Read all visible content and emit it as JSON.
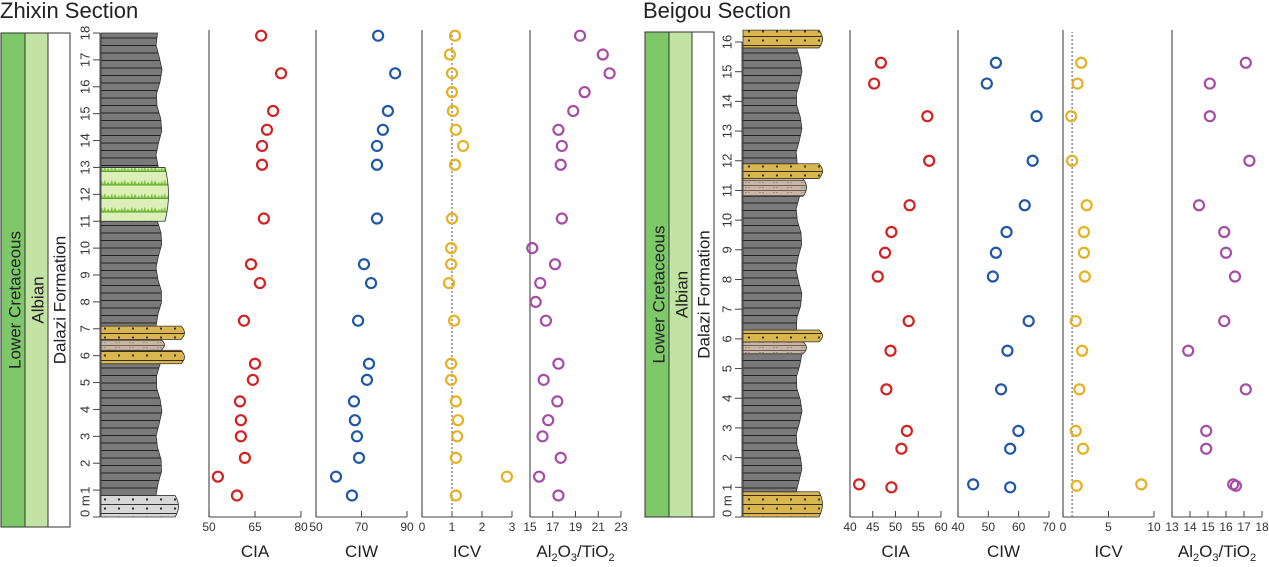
{
  "chart_data": [
    {
      "type": "scatter",
      "title": "Zhixin Section",
      "depth_axis": {
        "label": "m",
        "range": [
          0,
          18
        ],
        "ticks": [
          0,
          1,
          2,
          3,
          4,
          5,
          6,
          7,
          8,
          9,
          10,
          11,
          12,
          13,
          14,
          15,
          16,
          17,
          18
        ]
      },
      "strat_columns": [
        "Lower Cretaceous",
        "Albian",
        "Dalazi Formation"
      ],
      "lithology": [
        {
          "type": "sandstone-light",
          "from": 0,
          "to": 0.8
        },
        {
          "type": "mudstone",
          "from": 0.8,
          "to": 5.7
        },
        {
          "type": "sandstone",
          "from": 5.7,
          "to": 6.2
        },
        {
          "type": "siltstone",
          "from": 6.2,
          "to": 6.6
        },
        {
          "type": "sandstone",
          "from": 6.6,
          "to": 7.1
        },
        {
          "type": "mudstone",
          "from": 7.1,
          "to": 11.0
        },
        {
          "type": "vegetation",
          "from": 11.0,
          "to": 13.0
        },
        {
          "type": "mudstone",
          "from": 13.0,
          "to": 18.0
        }
      ],
      "panels": [
        {
          "name": "CIA",
          "xlabel": "CIA",
          "xlim": [
            50,
            80
          ],
          "ticks": [
            50,
            65,
            80
          ],
          "color": "#d32020",
          "points": [
            [
              0.8,
              59.1
            ],
            [
              1.5,
              52.9
            ],
            [
              2.2,
              61.7
            ],
            [
              3.0,
              60.4
            ],
            [
              3.6,
              60.4
            ],
            [
              4.3,
              60.1
            ],
            [
              5.1,
              64.3
            ],
            [
              5.7,
              65.0
            ],
            [
              7.3,
              61.4
            ],
            [
              8.7,
              66.6
            ],
            [
              9.4,
              63.7
            ],
            [
              11.1,
              67.9
            ],
            [
              13.1,
              67.3
            ],
            [
              13.8,
              67.3
            ],
            [
              14.4,
              68.9
            ],
            [
              15.1,
              70.9
            ],
            [
              16.5,
              73.5
            ],
            [
              17.9,
              67.0
            ]
          ]
        },
        {
          "name": "CIW",
          "xlabel": "CIW",
          "xlim": [
            50,
            90
          ],
          "ticks": [
            50,
            70,
            90
          ],
          "color": "#1f57a8",
          "points": [
            [
              0.8,
              65.8
            ],
            [
              1.5,
              58.8
            ],
            [
              2.2,
              68.9
            ],
            [
              3.0,
              68.0
            ],
            [
              3.6,
              67.1
            ],
            [
              4.3,
              66.7
            ],
            [
              5.1,
              72.4
            ],
            [
              5.7,
              73.3
            ],
            [
              7.3,
              68.5
            ],
            [
              8.7,
              74.2
            ],
            [
              9.4,
              71.1
            ],
            [
              11.1,
              76.8
            ],
            [
              13.1,
              76.8
            ],
            [
              13.8,
              76.8
            ],
            [
              14.4,
              79.4
            ],
            [
              15.1,
              81.6
            ],
            [
              16.5,
              84.8
            ],
            [
              17.9,
              77.3
            ]
          ]
        },
        {
          "name": "ICV",
          "xlabel": "ICV",
          "xlim": [
            0,
            3
          ],
          "ticks": [
            0,
            1,
            2,
            3
          ],
          "color": "#e6b021",
          "ref_line": 1,
          "points": [
            [
              0.8,
              1.13
            ],
            [
              1.5,
              2.83
            ],
            [
              2.2,
              1.13
            ],
            [
              3.0,
              1.17
            ],
            [
              3.6,
              1.2
            ],
            [
              4.3,
              1.13
            ],
            [
              5.1,
              0.97
            ],
            [
              5.7,
              0.97
            ],
            [
              7.3,
              1.07
            ],
            [
              8.7,
              0.9
            ],
            [
              9.4,
              0.97
            ],
            [
              10.0,
              0.97
            ],
            [
              11.1,
              1.0
            ],
            [
              13.1,
              1.1
            ],
            [
              13.8,
              1.37
            ],
            [
              14.4,
              1.13
            ],
            [
              15.1,
              1.03
            ],
            [
              15.8,
              1.0
            ],
            [
              16.5,
              1.0
            ],
            [
              17.2,
              0.93
            ],
            [
              17.9,
              1.1
            ]
          ]
        },
        {
          "name": "Al2O3/TiO2",
          "xlabel": "Al2O3/TiO2",
          "xlim": [
            15,
            23
          ],
          "ticks": [
            15,
            17,
            19,
            21,
            23
          ],
          "color": "#a64ca6",
          "points": [
            [
              0.8,
              17.5
            ],
            [
              1.5,
              15.8
            ],
            [
              2.2,
              17.7
            ],
            [
              3.0,
              16.1
            ],
            [
              3.6,
              16.6
            ],
            [
              4.3,
              17.4
            ],
            [
              5.1,
              16.2
            ],
            [
              5.7,
              17.5
            ],
            [
              7.3,
              16.4
            ],
            [
              8.0,
              15.5
            ],
            [
              8.7,
              15.9
            ],
            [
              9.4,
              17.2
            ],
            [
              10.0,
              15.2
            ],
            [
              11.1,
              17.8
            ],
            [
              13.1,
              17.7
            ],
            [
              13.8,
              17.8
            ],
            [
              14.4,
              17.5
            ],
            [
              15.1,
              18.8
            ],
            [
              15.8,
              19.8
            ],
            [
              16.5,
              22.0
            ],
            [
              17.2,
              21.4
            ],
            [
              17.9,
              19.4
            ]
          ]
        }
      ]
    },
    {
      "type": "scatter",
      "title": "Beigou Section",
      "depth_axis": {
        "label": "m",
        "range": [
          0,
          16
        ],
        "ticks": [
          0,
          1,
          2,
          3,
          4,
          5,
          6,
          7,
          8,
          9,
          10,
          11,
          12,
          13,
          14,
          15,
          16
        ]
      },
      "strat_columns": [
        "Lower Cretaceous",
        "Albian",
        "Dalazi Formation"
      ],
      "lithology": [
        {
          "type": "sandstone",
          "from": 0,
          "to": 0.85
        },
        {
          "type": "mudstone",
          "from": 0.85,
          "to": 5.5
        },
        {
          "type": "siltstone",
          "from": 5.5,
          "to": 5.9
        },
        {
          "type": "sandstone",
          "from": 5.9,
          "to": 6.3
        },
        {
          "type": "mudstone",
          "from": 6.3,
          "to": 10.8
        },
        {
          "type": "siltstone",
          "from": 10.8,
          "to": 11.4
        },
        {
          "type": "sandstone",
          "from": 11.4,
          "to": 11.9
        },
        {
          "type": "mudstone",
          "from": 11.9,
          "to": 15.8
        },
        {
          "type": "sandstone",
          "from": 15.8,
          "to": 16.4
        }
      ],
      "panels": [
        {
          "name": "CIA",
          "xlabel": "CIA",
          "xlim": [
            40,
            60
          ],
          "ticks": [
            40,
            45,
            50,
            55,
            60
          ],
          "color": "#d32020",
          "points": [
            [
              1.1,
              42.0
            ],
            [
              1.0,
              49.1
            ],
            [
              2.3,
              51.3
            ],
            [
              2.9,
              52.5
            ],
            [
              4.3,
              48.0
            ],
            [
              5.6,
              48.9
            ],
            [
              6.6,
              52.9
            ],
            [
              8.1,
              46.1
            ],
            [
              8.9,
              47.7
            ],
            [
              9.6,
              49.1
            ],
            [
              10.5,
              53.1
            ],
            [
              12.0,
              57.4
            ],
            [
              13.5,
              57.0
            ],
            [
              14.6,
              45.3
            ],
            [
              15.3,
              46.8
            ]
          ]
        },
        {
          "name": "CIW",
          "xlabel": "CIW",
          "xlim": [
            40,
            70
          ],
          "ticks": [
            40,
            50,
            60,
            70
          ],
          "color": "#1f57a8",
          "points": [
            [
              1.1,
              45.0
            ],
            [
              1.0,
              57.2
            ],
            [
              2.3,
              57.2
            ],
            [
              2.9,
              59.9
            ],
            [
              4.3,
              54.2
            ],
            [
              5.6,
              56.3
            ],
            [
              6.6,
              63.3
            ],
            [
              8.1,
              51.5
            ],
            [
              8.9,
              52.5
            ],
            [
              9.6,
              56.0
            ],
            [
              10.5,
              62.0
            ],
            [
              12.0,
              64.6
            ],
            [
              13.5,
              65.9
            ],
            [
              14.6,
              49.5
            ],
            [
              15.3,
              52.5
            ]
          ]
        },
        {
          "name": "ICV",
          "xlabel": "ICV",
          "xlim": [
            0,
            10
          ],
          "ticks": [
            0,
            5,
            10
          ],
          "color": "#e6b021",
          "ref_line": 1,
          "points": [
            [
              1.05,
              1.5
            ],
            [
              1.1,
              8.6
            ],
            [
              2.3,
              2.2
            ],
            [
              2.9,
              1.4
            ],
            [
              4.3,
              1.8
            ],
            [
              5.6,
              2.1
            ],
            [
              6.6,
              1.4
            ],
            [
              8.1,
              2.4
            ],
            [
              8.9,
              2.3
            ],
            [
              9.6,
              2.3
            ],
            [
              10.5,
              2.6
            ],
            [
              12.0,
              1.0
            ],
            [
              13.5,
              0.9
            ],
            [
              14.6,
              1.6
            ],
            [
              15.3,
              2.0
            ]
          ]
        },
        {
          "name": "Al2O3/TiO2",
          "xlabel": "Al2O3/TiO2",
          "xlim": [
            13,
            18
          ],
          "ticks": [
            13,
            14,
            15,
            16,
            17,
            18
          ],
          "color": "#a64ca6",
          "points": [
            [
              1.1,
              16.4
            ],
            [
              1.05,
              16.55
            ],
            [
              2.3,
              14.9
            ],
            [
              2.9,
              14.9
            ],
            [
              4.3,
              17.1
            ],
            [
              5.6,
              13.9
            ],
            [
              6.6,
              15.9
            ],
            [
              8.1,
              16.5
            ],
            [
              8.9,
              16.0
            ],
            [
              9.6,
              15.9
            ],
            [
              10.5,
              14.5
            ],
            [
              12.0,
              17.3
            ],
            [
              13.5,
              15.1
            ],
            [
              14.6,
              15.1
            ],
            [
              15.3,
              17.1
            ]
          ]
        }
      ]
    }
  ]
}
